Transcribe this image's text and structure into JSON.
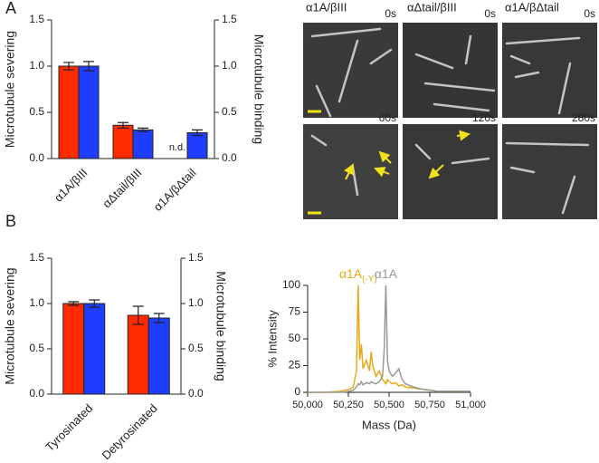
{
  "figure": {
    "panel_labels": [
      "A",
      "B"
    ],
    "micrographs": {
      "column_titles": [
        "α1A/βIII",
        "αΔtail/βIII",
        "α1A/βΔtail"
      ],
      "time_labels": [
        "0s",
        "0s",
        "0s",
        "60s",
        "120s",
        "280s"
      ]
    }
  },
  "chart_data": [
    {
      "type": "bar",
      "ylabel": "Microtubule severing",
      "y2label": "Microtubule binding",
      "categories": [
        "α1A/βIII",
        "αΔtail/βIII",
        "α1A/βΔtail"
      ],
      "ylim": [
        0,
        1.5
      ],
      "yticks": [
        {
          "value": 0,
          "label": "0.0"
        },
        0.5,
        {
          "value": 1,
          "label": "1.0"
        },
        1.5
      ],
      "y2lim": [
        0,
        1.5
      ],
      "y2ticks": [
        {
          "value": 0,
          "label": "0.0"
        },
        0.5,
        {
          "value": 1,
          "label": "1.0"
        },
        1.5
      ],
      "series": [
        {
          "name": "Microtubule severing",
          "color": "#ff2a00",
          "values": [
            1.0,
            0.36,
            null
          ],
          "errors": [
            0.04,
            0.03,
            null
          ],
          "value_labels": [
            null,
            null,
            "n.d."
          ]
        },
        {
          "name": "Microtubule binding",
          "color": "#1f3dff",
          "axis": "y2",
          "values": [
            1.0,
            0.31,
            0.28
          ],
          "errors": [
            0.05,
            0.02,
            0.03
          ]
        }
      ]
    },
    {
      "type": "bar",
      "ylabel": "Microtubule severing",
      "y2label": "Microtubule binding",
      "categories": [
        "Tyrosinated",
        "Detyrosinated"
      ],
      "category_colors": [
        "#999999",
        "#e6a817"
      ],
      "ylim": [
        0,
        1.5
      ],
      "yticks": [
        {
          "value": 0,
          "label": "0.0"
        },
        0.5,
        {
          "value": 1,
          "label": "1.0"
        },
        1.5
      ],
      "y2lim": [
        0,
        1.5
      ],
      "y2ticks": [
        {
          "value": 0,
          "label": "0.0"
        },
        0.5,
        {
          "value": 1,
          "label": "1.0"
        },
        1.5
      ],
      "series": [
        {
          "name": "Microtubule severing",
          "color": "#ff2a00",
          "values": [
            1.0,
            0.87
          ],
          "errors": [
            0.02,
            0.1
          ]
        },
        {
          "name": "Microtubule binding",
          "color": "#1f3dff",
          "axis": "y2",
          "values": [
            1.0,
            0.84
          ],
          "errors": [
            0.04,
            0.05
          ]
        }
      ]
    },
    {
      "type": "line",
      "xlabel": "Mass (Da)",
      "ylabel": "% Intensity",
      "x": [
        50000,
        50100,
        50200,
        50260,
        50280,
        50300,
        50310,
        50320,
        50330,
        50340,
        50360,
        50380,
        50390,
        50400,
        50420,
        50440,
        50460,
        50470,
        50480,
        50490,
        50500,
        50520,
        50540,
        50560,
        50580,
        50600,
        50650,
        50700,
        50750,
        50800,
        50900,
        51000
      ],
      "xlim": [
        50000,
        51000
      ],
      "xticks": [
        {
          "value": 50000,
          "label": "50,000"
        },
        {
          "value": 50250,
          "label": "50,250"
        },
        {
          "value": 50500,
          "label": "50,500"
        },
        {
          "value": 50750,
          "label": "50,750"
        },
        {
          "value": 51000,
          "label": "51,000"
        }
      ],
      "ylim": [
        0,
        100
      ],
      "yticks": [
        0,
        25,
        50,
        75,
        100
      ],
      "series": [
        {
          "name": "α1A",
          "name_subscript": "(-Y)",
          "color": "#e6a817",
          "values": [
            0,
            0,
            1,
            3,
            5,
            20,
            100,
            30,
            45,
            22,
            30,
            20,
            38,
            25,
            15,
            20,
            12,
            10,
            8,
            12,
            10,
            8,
            9,
            6,
            7,
            5,
            4,
            3,
            2,
            1,
            1,
            1
          ]
        },
        {
          "name": "α1A",
          "color": "#999999",
          "values": [
            0,
            0,
            0,
            1,
            2,
            5,
            8,
            7,
            10,
            7,
            9,
            8,
            10,
            9,
            8,
            10,
            15,
            40,
            100,
            30,
            20,
            15,
            18,
            22,
            12,
            8,
            5,
            3,
            2,
            1,
            1,
            1
          ]
        }
      ]
    }
  ]
}
